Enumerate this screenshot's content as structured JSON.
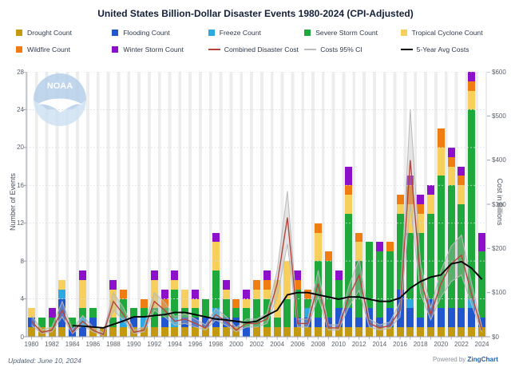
{
  "title": "United States Billion-Dollar Disaster Events 1980-2024 (CPI-Adjusted)",
  "watermark": "NOAA",
  "legend": {
    "rows": [
      [
        {
          "label": "Drought Count",
          "kind": "box",
          "color": "#C3990F"
        },
        {
          "label": "Flooding Count",
          "kind": "box",
          "color": "#2156CE"
        },
        {
          "label": "Freeze Count",
          "kind": "box",
          "color": "#2EA8E0"
        },
        {
          "label": "Severe Storm Count",
          "kind": "box",
          "color": "#1FA83C"
        },
        {
          "label": "Tropical Cyclone Count",
          "kind": "box",
          "color": "#F6CF5D"
        }
      ],
      [
        {
          "label": "Wildfire Count",
          "kind": "box",
          "color": "#F07D11"
        },
        {
          "label": "Winter Storm Count",
          "kind": "box",
          "color": "#8C10C9"
        },
        {
          "label": "Combined Disaster Cost",
          "kind": "line",
          "color": "#B5443C"
        },
        {
          "label": "Costs 95% CI",
          "kind": "line",
          "color": "#BDBDBD"
        },
        {
          "label": "5-Year Avg Costs",
          "kind": "line",
          "color": "#000000"
        }
      ]
    ]
  },
  "axes": {
    "left_title": "Number of Events",
    "right_title": "Cost in Billions",
    "left_ticks": [
      0,
      4,
      8,
      12,
      16,
      20,
      24,
      28
    ],
    "right_ticks": [
      "$0",
      "$100",
      "$200",
      "$300",
      "$400",
      "$500",
      "$600"
    ],
    "x_tick_labels": [
      "1980",
      "1982",
      "1984",
      "1986",
      "1988",
      "1990",
      "1992",
      "1994",
      "1996",
      "1998",
      "2000",
      "2002",
      "2004",
      "2006",
      "2008",
      "2010",
      "2012",
      "2014",
      "2016",
      "2018",
      "2020",
      "2022",
      "2024"
    ]
  },
  "footer": {
    "updated": "Updated: June 10, 2024",
    "powered_prefix": "Powered by ",
    "powered_brand": "ZingChart"
  },
  "chart_data": {
    "type": "bar",
    "subtype": "stacked-bars-with-line-overlays",
    "title": "United States Billion-Dollar Disaster Events 1980-2024 (CPI-Adjusted)",
    "xlabel": "",
    "ylabel_left": "Number of Events",
    "ylabel_right": "Cost in Billions",
    "ylim_left": [
      0,
      28
    ],
    "ylim_right": [
      0,
      600
    ],
    "grid": "horizontal-dashed",
    "legend_position": "top",
    "categories": [
      1980,
      1981,
      1982,
      1983,
      1984,
      1985,
      1986,
      1987,
      1988,
      1989,
      1990,
      1991,
      1992,
      1993,
      1994,
      1995,
      1996,
      1997,
      1998,
      1999,
      2000,
      2001,
      2002,
      2003,
      2004,
      2005,
      2006,
      2007,
      2008,
      2009,
      2010,
      2011,
      2012,
      2013,
      2014,
      2015,
      2016,
      2017,
      2018,
      2019,
      2020,
      2021,
      2022,
      2023,
      2024
    ],
    "series": [
      {
        "name": "Drought Count",
        "color": "#C3990F",
        "values": [
          1,
          1,
          1,
          1,
          0,
          0,
          1,
          1,
          1,
          1,
          1,
          1,
          1,
          1,
          1,
          1,
          1,
          1,
          1,
          1,
          1,
          0,
          1,
          1,
          1,
          1,
          1,
          1,
          1,
          1,
          1,
          1,
          1,
          1,
          1,
          1,
          1,
          1,
          1,
          1,
          1,
          1,
          1,
          1,
          1
        ]
      },
      {
        "name": "Flooding Count",
        "color": "#2156CE",
        "values": [
          1,
          0,
          0,
          3,
          1,
          1,
          1,
          0,
          0,
          0,
          1,
          0,
          0,
          1,
          0,
          1,
          1,
          1,
          1,
          1,
          1,
          1,
          0,
          0,
          0,
          0,
          1,
          1,
          1,
          1,
          2,
          2,
          1,
          2,
          1,
          2,
          4,
          2,
          1,
          3,
          2,
          2,
          2,
          2,
          1
        ]
      },
      {
        "name": "Freeze Count",
        "color": "#2EA8E0",
        "values": [
          0,
          0,
          0,
          1,
          0,
          1,
          0,
          0,
          0,
          1,
          0,
          1,
          0,
          0,
          1,
          0,
          0,
          0,
          1,
          0,
          0,
          0,
          0,
          0,
          0,
          0,
          0,
          1,
          0,
          0,
          0,
          0,
          0,
          0,
          0,
          0,
          0,
          1,
          0,
          0,
          0,
          0,
          0,
          1,
          0
        ]
      },
      {
        "name": "Severe Storm Count",
        "color": "#1FA83C",
        "values": [
          0,
          1,
          1,
          0,
          1,
          1,
          1,
          0,
          1,
          2,
          1,
          1,
          2,
          1,
          3,
          1,
          1,
          2,
          4,
          2,
          1,
          2,
          3,
          3,
          1,
          3,
          3,
          1,
          6,
          6,
          3,
          10,
          6,
          7,
          7,
          6,
          8,
          7,
          9,
          9,
          14,
          13,
          11,
          20,
          7
        ]
      },
      {
        "name": "Tropical Cyclone Count",
        "color": "#F6CF5D",
        "values": [
          1,
          0,
          0,
          1,
          0,
          3,
          0,
          0,
          3,
          0,
          0,
          0,
          3,
          0,
          1,
          2,
          1,
          0,
          3,
          1,
          0,
          1,
          1,
          1,
          4,
          4,
          0,
          0,
          3,
          0,
          0,
          2,
          2,
          0,
          0,
          0,
          1,
          3,
          2,
          2,
          3,
          2,
          2,
          2,
          0
        ]
      },
      {
        "name": "Wildfire Count",
        "color": "#F07D11",
        "values": [
          0,
          0,
          0,
          0,
          0,
          0,
          0,
          0,
          0,
          1,
          0,
          1,
          0,
          1,
          0,
          0,
          0,
          0,
          0,
          0,
          1,
          0,
          1,
          1,
          0,
          0,
          1,
          1,
          1,
          1,
          0,
          1,
          1,
          0,
          0,
          1,
          1,
          2,
          1,
          0,
          2,
          1,
          1,
          1,
          0
        ]
      },
      {
        "name": "Winter Storm Count",
        "color": "#8C10C9",
        "values": [
          0,
          0,
          1,
          0,
          0,
          1,
          0,
          0,
          1,
          0,
          0,
          0,
          1,
          1,
          1,
          0,
          1,
          0,
          1,
          1,
          0,
          1,
          0,
          1,
          0,
          0,
          1,
          0,
          0,
          0,
          1,
          2,
          0,
          0,
          1,
          0,
          0,
          1,
          1,
          1,
          0,
          1,
          1,
          1,
          2
        ]
      }
    ],
    "line_series": [
      {
        "name": "Combined Disaster Cost",
        "color": "#B5443C",
        "axis": "right",
        "values": [
          35,
          10,
          15,
          60,
          10,
          35,
          15,
          5,
          80,
          50,
          10,
          15,
          80,
          60,
          35,
          40,
          30,
          20,
          50,
          35,
          15,
          30,
          30,
          40,
          120,
          270,
          30,
          30,
          120,
          20,
          20,
          90,
          140,
          30,
          20,
          25,
          60,
          400,
          130,
          50,
          120,
          165,
          185,
          95,
          15
        ]
      },
      {
        "name": "Costs 95% CI upper",
        "color": "#BDBDBD",
        "axis": "right",
        "values": [
          48,
          16,
          22,
          80,
          16,
          48,
          22,
          9,
          100,
          65,
          15,
          22,
          100,
          78,
          46,
          52,
          40,
          27,
          64,
          46,
          21,
          40,
          40,
          52,
          150,
          330,
          40,
          40,
          150,
          27,
          27,
          115,
          175,
          40,
          27,
          33,
          78,
          515,
          165,
          65,
          150,
          205,
          230,
          120,
          22
        ]
      },
      {
        "name": "Costs 95% CI lower",
        "color": "#BDBDBD",
        "axis": "right",
        "values": [
          26,
          7,
          11,
          45,
          7,
          26,
          11,
          3,
          60,
          37,
          7,
          11,
          60,
          45,
          26,
          30,
          22,
          15,
          38,
          26,
          11,
          22,
          22,
          30,
          90,
          210,
          22,
          22,
          90,
          15,
          15,
          68,
          105,
          22,
          15,
          19,
          45,
          300,
          98,
          38,
          90,
          125,
          140,
          72,
          10
        ]
      },
      {
        "name": "5-Year Avg Costs",
        "color": "#000000",
        "axis": "right",
        "values": [
          null,
          null,
          null,
          null,
          25,
          24,
          22,
          20,
          28,
          36,
          45,
          45,
          48,
          50,
          55,
          55,
          50,
          45,
          40,
          38,
          35,
          32,
          35,
          48,
          60,
          95,
          100,
          100,
          95,
          90,
          85,
          90,
          90,
          85,
          80,
          80,
          88,
          110,
          125,
          135,
          140,
          165,
          170,
          155,
          130
        ]
      }
    ]
  }
}
